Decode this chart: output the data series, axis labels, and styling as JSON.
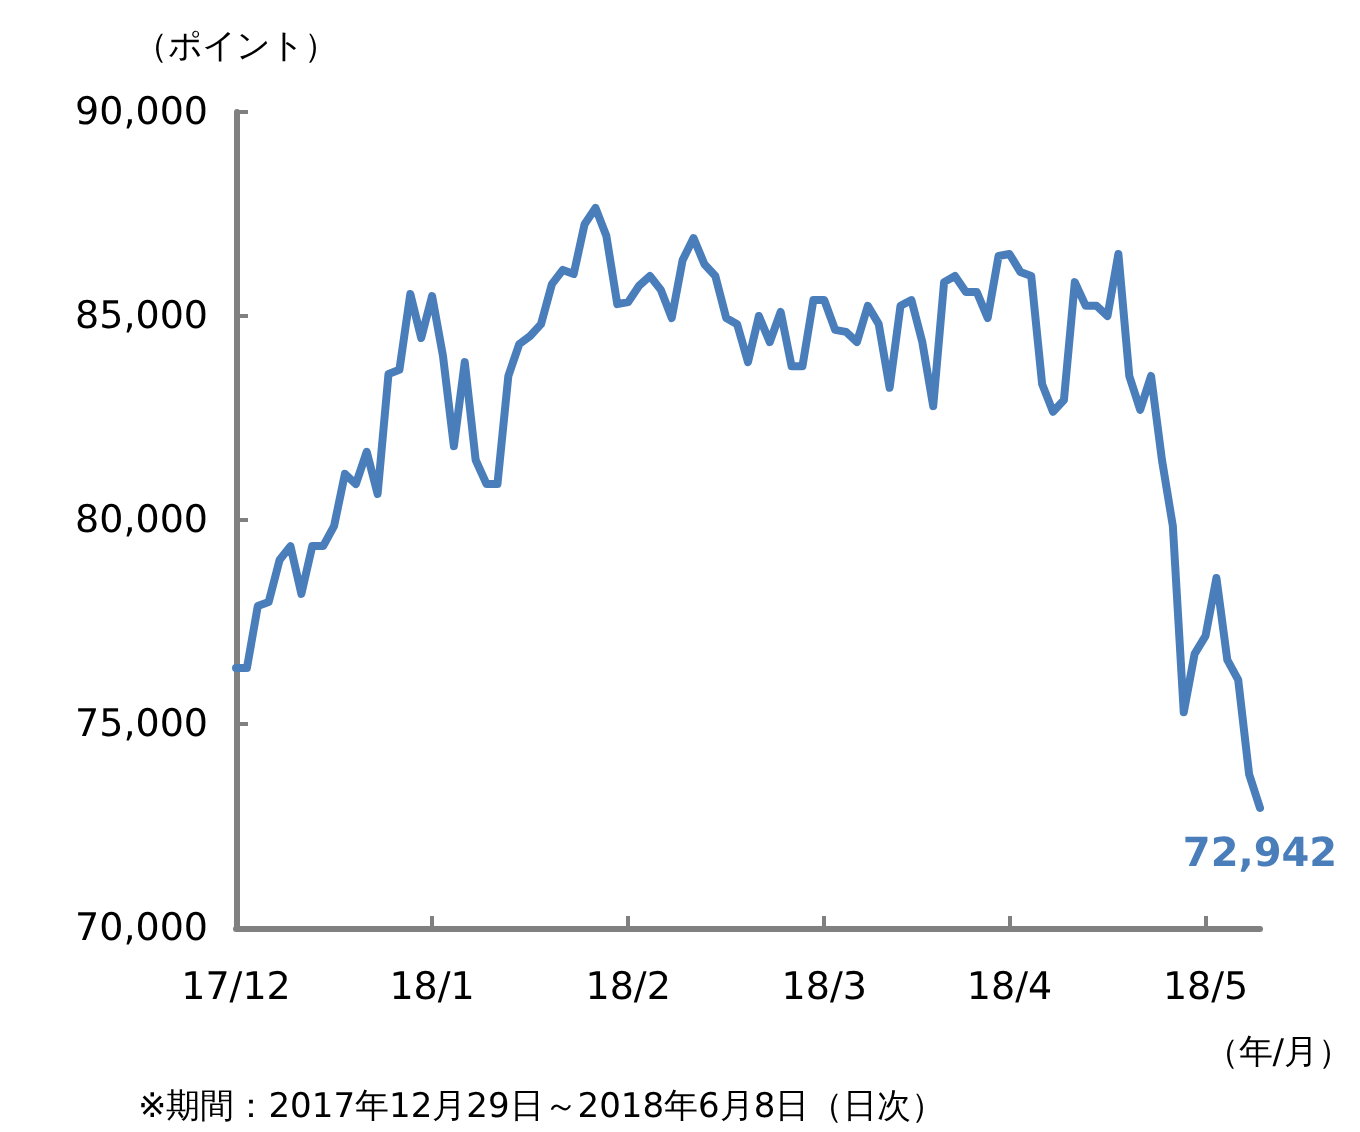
{
  "chart_data": {
    "type": "line",
    "ylabel": "（ポイント）",
    "xlabel": "（年/月）",
    "annotations": [
      "※期間：2017年12月29日～2018年6月8日（日次）"
    ],
    "categories": [
      "17/12",
      null,
      null,
      null,
      null,
      null,
      null,
      null,
      null,
      null,
      null,
      null,
      null,
      null,
      null,
      null,
      null,
      null,
      "18/1",
      null,
      null,
      null,
      null,
      null,
      null,
      null,
      null,
      null,
      null,
      null,
      null,
      null,
      null,
      null,
      null,
      null,
      "18/2",
      null,
      null,
      null,
      null,
      null,
      null,
      null,
      null,
      null,
      null,
      null,
      null,
      null,
      null,
      null,
      null,
      null,
      "18/3",
      null,
      null,
      null,
      null,
      null,
      null,
      null,
      null,
      null,
      null,
      null,
      null,
      null,
      null,
      null,
      null,
      "18/4",
      null,
      null,
      null,
      null,
      null,
      null,
      null,
      null,
      null,
      null,
      null,
      null,
      null,
      null,
      null,
      null,
      null,
      "18/5",
      null,
      null,
      null,
      null,
      null
    ],
    "ylim": [
      70000,
      90000
    ],
    "yticks": [
      {
        "value": 70000,
        "label": "70,000"
      },
      {
        "value": 75000,
        "label": "75,000"
      },
      {
        "value": 80000,
        "label": "80,000"
      },
      {
        "value": 85000,
        "label": "85,000"
      },
      {
        "value": 90000,
        "label": "90,000"
      }
    ],
    "grid": false,
    "marker": "none",
    "line_style": "solid",
    "series": [
      {
        "color": "#4a7ebb",
        "values": [
          76370,
          76370,
          77890,
          77990,
          79020,
          79360,
          78190,
          79360,
          79360,
          79850,
          81130,
          80880,
          81670,
          80640,
          83580,
          83680,
          85540,
          84460,
          85490,
          84020,
          81810,
          83870,
          81470,
          80880,
          80880,
          83530,
          84310,
          84510,
          84800,
          85780,
          86130,
          86030,
          87250,
          87650,
          86960,
          85290,
          85340,
          85740,
          85980,
          85640,
          84950,
          86370,
          86910,
          86270,
          85980,
          84950,
          84800,
          83870,
          85000,
          84360,
          85100,
          83770,
          83770,
          85390,
          85390,
          84660,
          84610,
          84360,
          85250,
          84800,
          83240,
          85250,
          85390,
          84360,
          82790,
          85830,
          85980,
          85590,
          85590,
          84950,
          86470,
          86520,
          86080,
          85980,
          83330,
          82650,
          82940,
          85830,
          85250,
          85250,
          85000,
          86520,
          83530,
          82700,
          83530,
          81470,
          79850,
          75290,
          76720,
          77160,
          78580,
          76570,
          76080,
          73770,
          72942
        ],
        "value_labels": [
          null,
          null,
          null,
          null,
          null,
          null,
          null,
          null,
          null,
          null,
          null,
          null,
          null,
          null,
          null,
          null,
          null,
          null,
          null,
          null,
          null,
          null,
          null,
          null,
          null,
          null,
          null,
          null,
          null,
          null,
          null,
          null,
          null,
          null,
          null,
          null,
          null,
          null,
          null,
          null,
          null,
          null,
          null,
          null,
          null,
          null,
          null,
          null,
          null,
          null,
          null,
          null,
          null,
          null,
          null,
          null,
          null,
          null,
          null,
          null,
          null,
          null,
          null,
          null,
          null,
          null,
          null,
          null,
          null,
          null,
          null,
          null,
          null,
          null,
          null,
          null,
          null,
          null,
          null,
          null,
          null,
          null,
          null,
          null,
          null,
          null,
          null,
          null,
          null,
          null,
          null,
          null,
          null,
          null,
          "72,942"
        ]
      }
    ]
  }
}
